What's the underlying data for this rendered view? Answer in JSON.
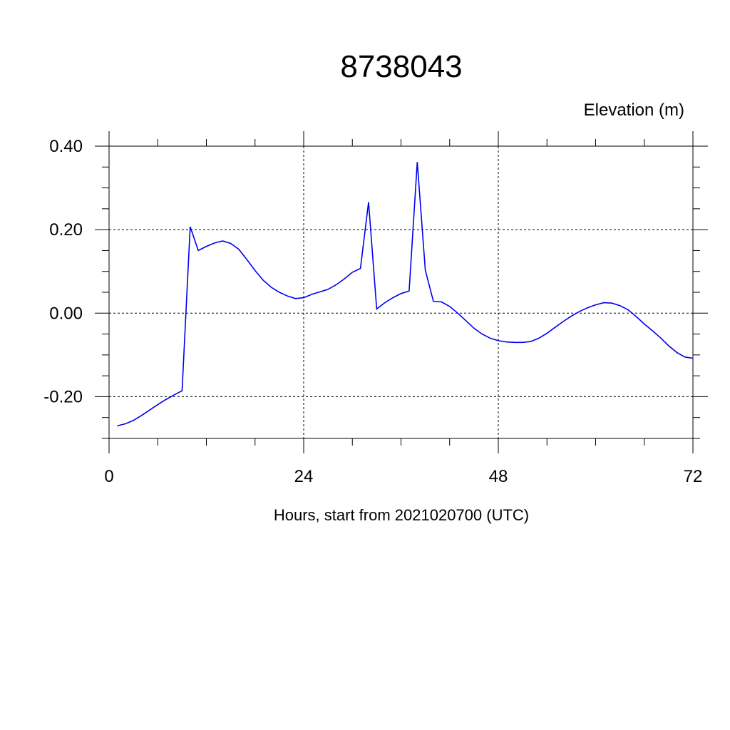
{
  "chart_data": {
    "type": "line",
    "title": "8738043",
    "ylabel": "Elevation (m)",
    "xlabel": "Hours, start from 2021020700 (UTC)",
    "xlim": [
      0,
      72
    ],
    "ylim": [
      -0.3,
      0.4
    ],
    "xticks": [
      0,
      24,
      48,
      72
    ],
    "xtick_labels": [
      "0",
      "24",
      "48",
      "72"
    ],
    "yticks": [
      0.4,
      0.2,
      0.0,
      -0.2
    ],
    "ytick_labels": [
      "0.40",
      "0.20",
      "0.00",
      "-0.20"
    ],
    "grid": true,
    "line_color": "#0000ee",
    "series": [
      {
        "x": [
          1,
          2,
          3,
          4,
          5,
          6,
          7,
          8,
          9,
          10,
          11,
          12,
          13,
          14,
          15,
          16,
          17,
          18,
          19,
          20,
          21,
          22,
          23,
          24,
          25,
          26,
          27,
          28,
          29,
          30,
          31,
          32,
          33,
          34,
          35,
          36,
          37,
          38,
          39,
          40,
          41,
          42,
          43,
          44,
          45,
          46,
          47,
          48,
          49,
          50,
          51,
          52,
          53,
          54,
          55,
          56,
          57,
          58,
          59,
          60,
          61,
          62,
          63,
          64,
          65,
          66,
          67,
          68,
          69,
          70,
          71,
          72
        ],
        "values": [
          -0.27,
          -0.265,
          -0.257,
          -0.245,
          -0.232,
          -0.219,
          -0.207,
          -0.196,
          -0.186,
          0.207,
          0.15,
          0.16,
          0.168,
          0.173,
          0.167,
          0.153,
          0.128,
          0.102,
          0.079,
          0.062,
          0.05,
          0.041,
          0.035,
          0.037,
          0.045,
          0.051,
          0.057,
          0.068,
          0.082,
          0.098,
          0.107,
          0.266,
          0.01,
          0.025,
          0.037,
          0.047,
          0.053,
          0.362,
          0.103,
          0.028,
          0.027,
          0.016,
          0.0,
          -0.018,
          -0.036,
          -0.05,
          -0.06,
          -0.066,
          -0.069,
          -0.07,
          -0.07,
          -0.068,
          -0.06,
          -0.048,
          -0.034,
          -0.02,
          -0.007,
          0.004,
          0.013,
          0.02,
          0.025,
          0.024,
          0.018,
          0.008,
          -0.008,
          -0.026,
          -0.042,
          -0.059,
          -0.078,
          -0.094,
          -0.105,
          -0.108
        ]
      }
    ]
  }
}
